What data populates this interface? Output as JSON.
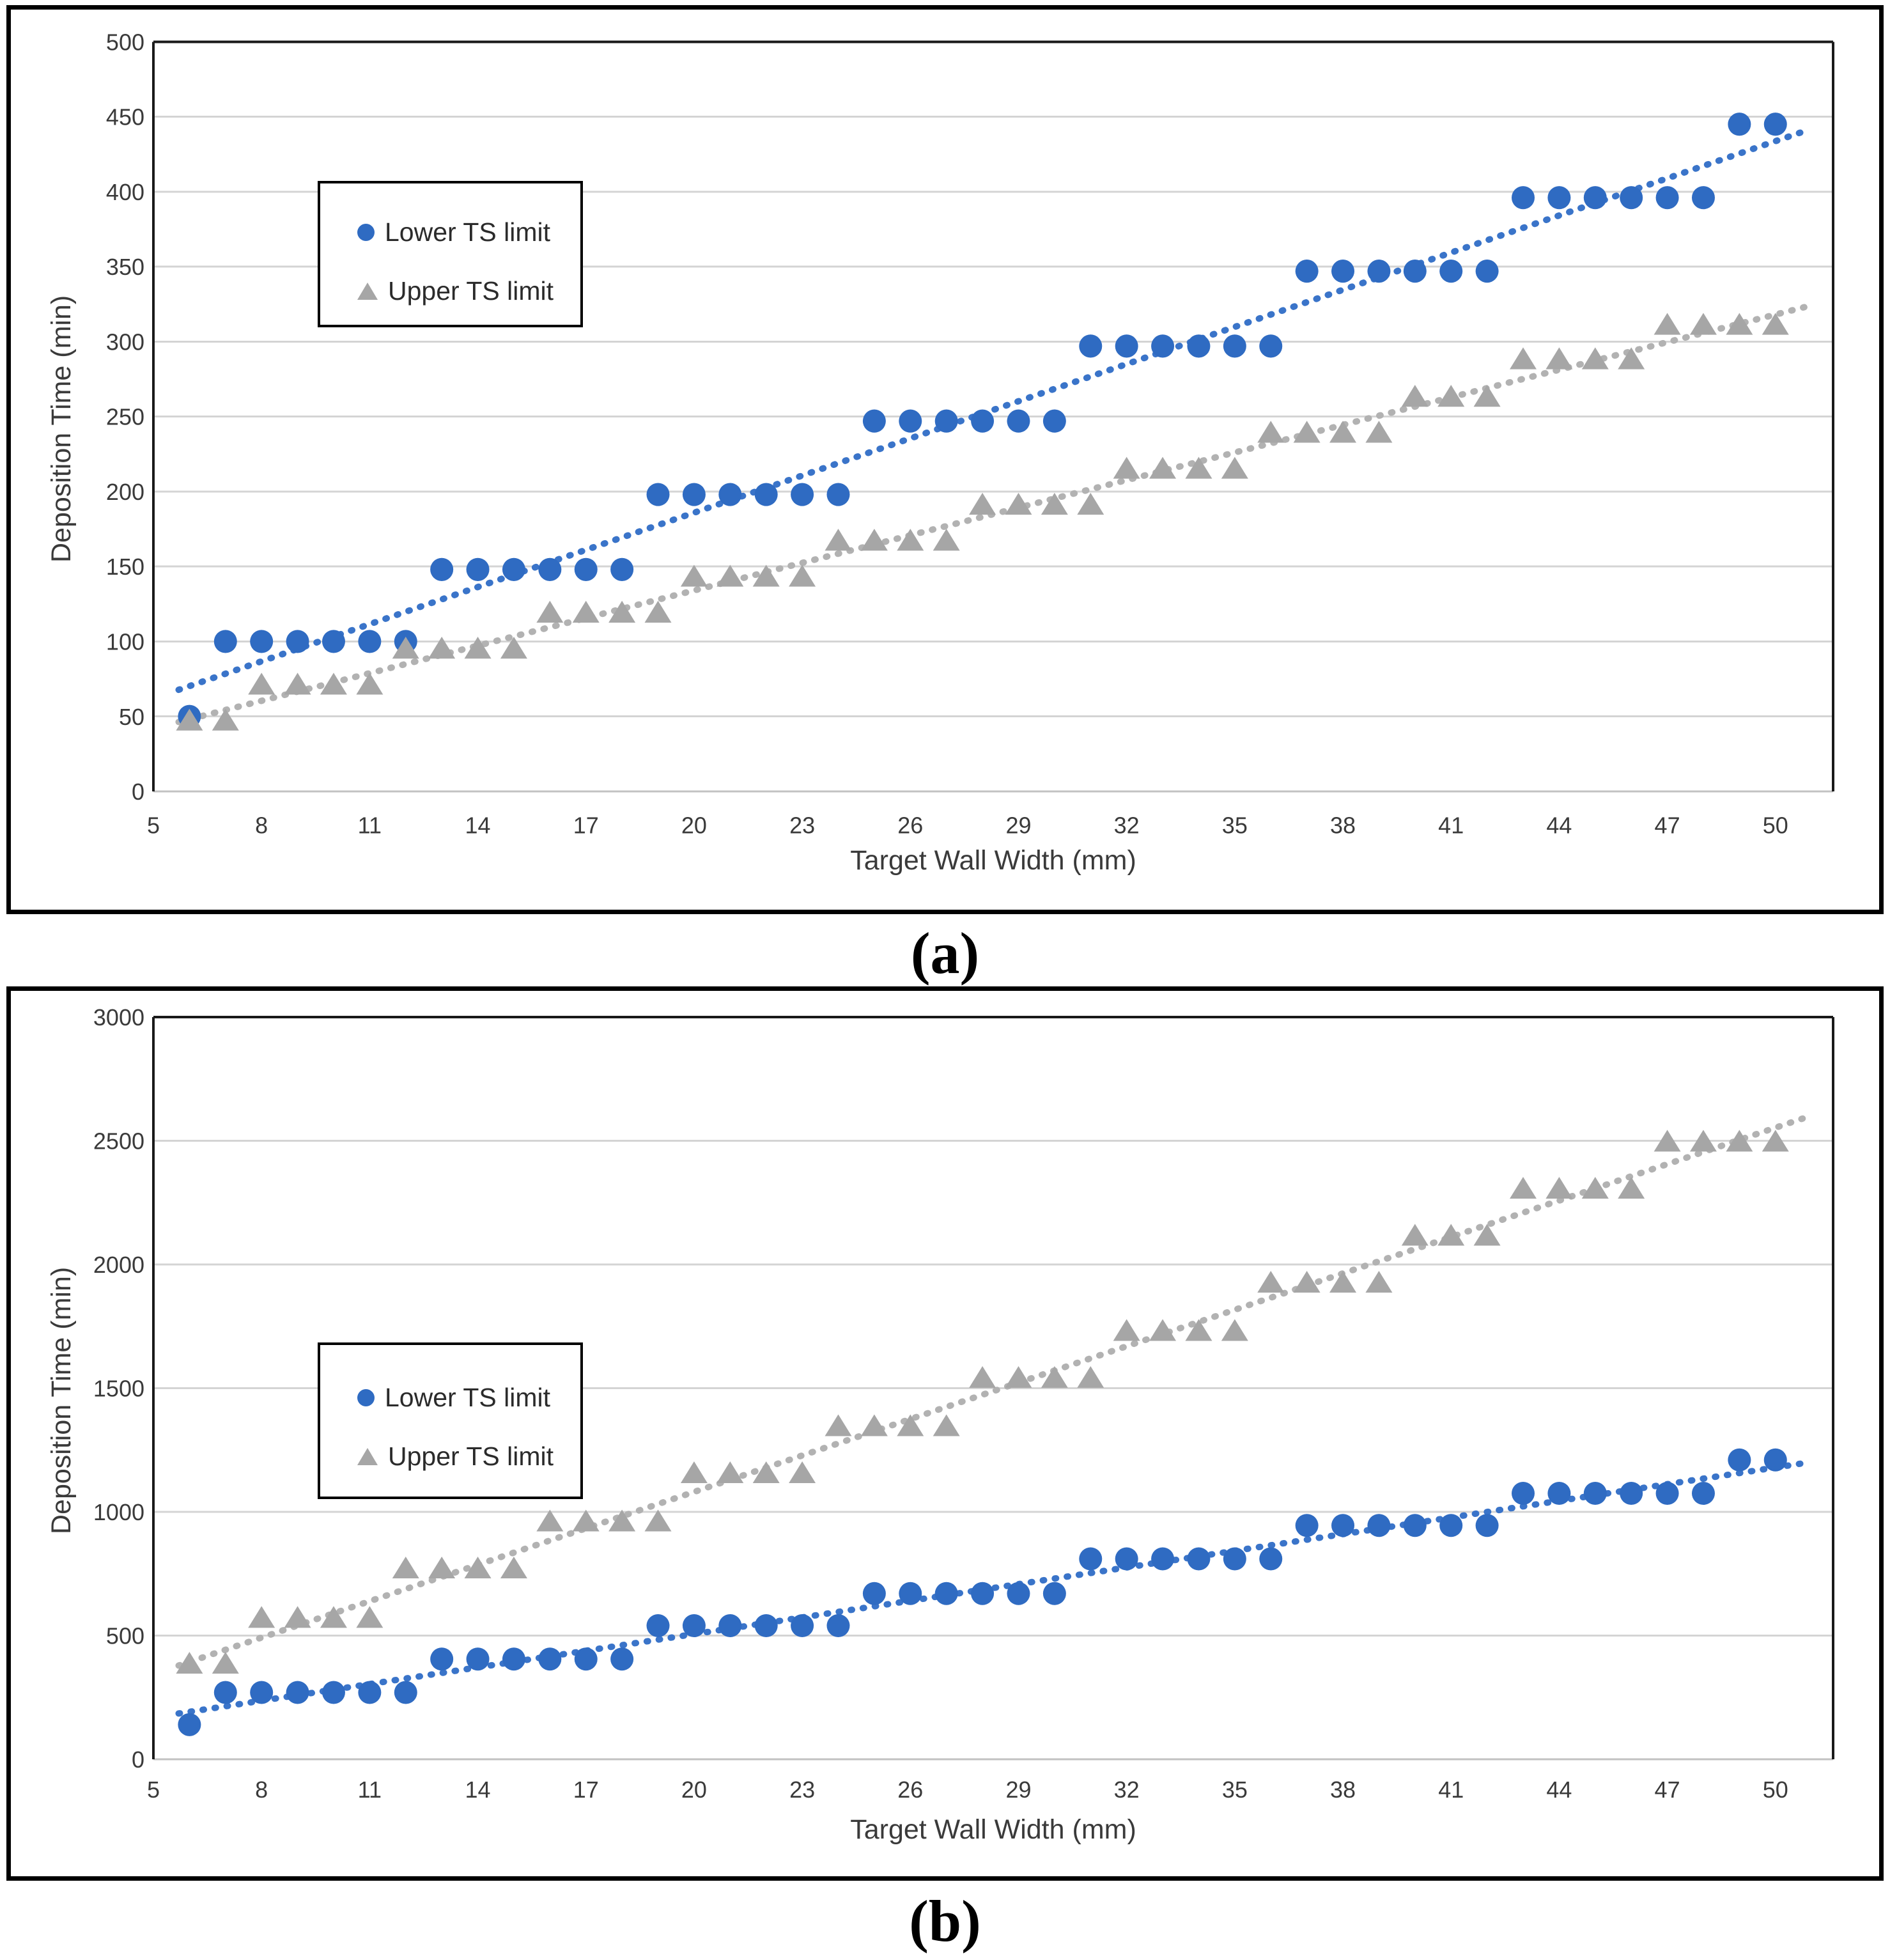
{
  "figure": {
    "panel_a_label": "(a)",
    "panel_b_label": "(b)"
  },
  "colors": {
    "lower_series": "#2f6bc2",
    "lower_trend": "#3a74c9",
    "upper_series": "#a6a6a6",
    "upper_trend": "#b2b2b2",
    "gridline": "#d4d4d4",
    "axis_line": "#c2c2c2",
    "plot_border": "#1a1a1a",
    "tick_text": "#3a3a3a"
  },
  "chart_data": [
    {
      "id": "a",
      "type": "scatter",
      "title": "",
      "xlabel": "Target Wall Width (mm)",
      "ylabel": "Deposition Time (min)",
      "xlim": [
        5,
        51.6
      ],
      "ylim": [
        0,
        500
      ],
      "x_ticks": [
        5,
        8,
        11,
        14,
        17,
        20,
        23,
        26,
        29,
        32,
        35,
        38,
        41,
        44,
        47,
        50
      ],
      "y_ticks": [
        0,
        50,
        100,
        150,
        200,
        250,
        300,
        350,
        400,
        450,
        500
      ],
      "grid": "horizontal",
      "legend_position": "upper-left-inside",
      "series": [
        {
          "name": "Lower TS limit",
          "marker": "circle",
          "trend": "dotted-linear",
          "x": [
            6,
            7,
            8,
            9,
            10,
            11,
            12,
            13,
            14,
            15,
            16,
            17,
            18,
            19,
            20,
            21,
            22,
            23,
            24,
            25,
            26,
            27,
            28,
            29,
            30,
            31,
            32,
            33,
            34,
            35,
            36,
            37,
            38,
            39,
            40,
            41,
            42,
            43,
            44,
            45,
            46,
            47,
            48,
            49,
            50
          ],
          "values": [
            50,
            100,
            100,
            100,
            100,
            100,
            100,
            148,
            148,
            148,
            148,
            148,
            148,
            198,
            198,
            198,
            198,
            198,
            198,
            247,
            247,
            247,
            247,
            247,
            247,
            297,
            297,
            297,
            297,
            297,
            297,
            347,
            347,
            347,
            347,
            347,
            347,
            396,
            396,
            396,
            396,
            396,
            396,
            445,
            445
          ]
        },
        {
          "name": "Upper TS limit",
          "marker": "triangle",
          "trend": "dotted-linear",
          "x": [
            6,
            7,
            8,
            9,
            10,
            11,
            12,
            13,
            14,
            15,
            16,
            17,
            18,
            19,
            20,
            21,
            22,
            23,
            24,
            25,
            26,
            27,
            28,
            29,
            30,
            31,
            32,
            33,
            34,
            35,
            36,
            37,
            38,
            39,
            40,
            41,
            42,
            43,
            44,
            45,
            46,
            47,
            48,
            49,
            50
          ],
          "values": [
            47,
            47,
            71,
            71,
            71,
            71,
            95,
            95,
            95,
            95,
            119,
            119,
            119,
            119,
            143,
            143,
            143,
            143,
            167,
            167,
            167,
            167,
            191,
            191,
            191,
            191,
            215,
            215,
            215,
            215,
            239,
            239,
            239,
            239,
            263,
            263,
            263,
            288,
            288,
            288,
            288,
            311,
            311,
            311,
            311
          ]
        }
      ]
    },
    {
      "id": "b",
      "type": "scatter",
      "title": "",
      "xlabel": "Target Wall Width (mm)",
      "ylabel": "Deposition Time (min)",
      "xlim": [
        5,
        51.6
      ],
      "ylim": [
        0,
        3000
      ],
      "x_ticks": [
        5,
        8,
        11,
        14,
        17,
        20,
        23,
        26,
        29,
        32,
        35,
        38,
        41,
        44,
        47,
        50
      ],
      "y_ticks": [
        0,
        500,
        1000,
        1500,
        2000,
        2500,
        3000
      ],
      "grid": "horizontal",
      "legend_position": "upper-left-inside",
      "series": [
        {
          "name": "Lower TS limit",
          "marker": "circle",
          "trend": "dotted-linear",
          "x": [
            6,
            7,
            8,
            9,
            10,
            11,
            12,
            13,
            14,
            15,
            16,
            17,
            18,
            19,
            20,
            21,
            22,
            23,
            24,
            25,
            26,
            27,
            28,
            29,
            30,
            31,
            32,
            33,
            34,
            35,
            36,
            37,
            38,
            39,
            40,
            41,
            42,
            43,
            44,
            45,
            46,
            47,
            48,
            49,
            50
          ],
          "values": [
            140,
            270,
            270,
            270,
            270,
            270,
            270,
            405,
            405,
            405,
            405,
            405,
            405,
            540,
            540,
            540,
            540,
            540,
            540,
            670,
            670,
            670,
            670,
            670,
            670,
            810,
            810,
            810,
            810,
            810,
            810,
            945,
            945,
            945,
            945,
            945,
            945,
            1075,
            1075,
            1075,
            1075,
            1075,
            1075,
            1210,
            1210
          ]
        },
        {
          "name": "Upper TS limit",
          "marker": "triangle",
          "trend": "dotted-linear",
          "x": [
            6,
            7,
            8,
            9,
            10,
            11,
            12,
            13,
            14,
            15,
            16,
            17,
            18,
            19,
            20,
            21,
            22,
            23,
            24,
            25,
            26,
            27,
            28,
            29,
            30,
            31,
            32,
            33,
            34,
            35,
            36,
            37,
            38,
            39,
            40,
            41,
            42,
            43,
            44,
            45,
            46,
            47,
            48,
            49,
            50
          ],
          "values": [
            385,
            385,
            570,
            570,
            570,
            570,
            770,
            770,
            770,
            770,
            960,
            960,
            960,
            960,
            1155,
            1155,
            1155,
            1155,
            1345,
            1345,
            1345,
            1345,
            1540,
            1540,
            1540,
            1540,
            1730,
            1730,
            1730,
            1730,
            1925,
            1925,
            1925,
            1925,
            2115,
            2115,
            2115,
            2305,
            2305,
            2305,
            2305,
            2495,
            2495,
            2495,
            2495
          ]
        }
      ]
    }
  ]
}
